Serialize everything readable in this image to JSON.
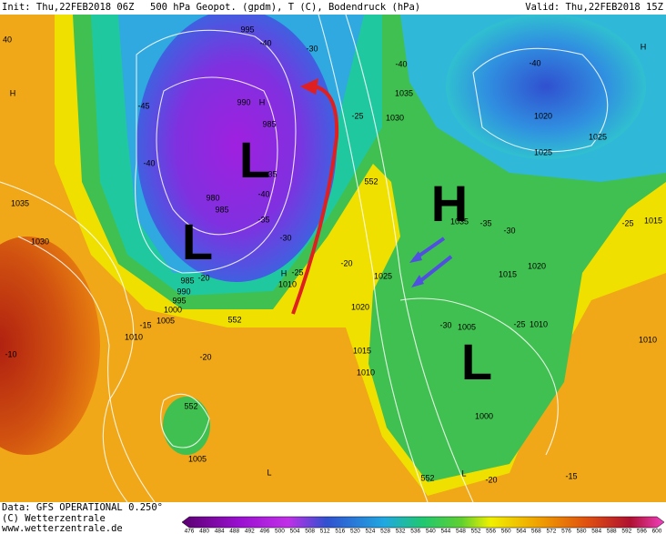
{
  "header": {
    "init": "Init: Thu,22FEB2018 06Z",
    "field": "500 hPa Geopot. (gpdm), T (C), Bodendruck (hPa)",
    "valid": "Valid: Thu,22FEB2018 15Z"
  },
  "footer": {
    "data": "Data: GFS OPERATIONAL 0.250°",
    "copyright": "(C) Wetterzentrale",
    "url": "www.wetterzentrale.de"
  },
  "colorbar": [
    "476",
    "480",
    "484",
    "488",
    "492",
    "496",
    "500",
    "504",
    "508",
    "512",
    "516",
    "520",
    "524",
    "528",
    "532",
    "536",
    "540",
    "544",
    "548",
    "552",
    "556",
    "560",
    "564",
    "568",
    "572",
    "576",
    "580",
    "584",
    "588",
    "592",
    "596",
    "600"
  ],
  "labels": [
    "995",
    "-40",
    "-30",
    "990",
    "H",
    "985",
    "L",
    "-35",
    "-40",
    "980",
    "985",
    "-35",
    "L",
    "-30",
    "H",
    "1010",
    "-25",
    "985",
    "990",
    "995",
    "1000",
    "1005",
    "552",
    "-15",
    "1010",
    "-20",
    "-20",
    "-45",
    "-40",
    "1035",
    "1030",
    "-10",
    "H",
    "40",
    "552",
    "1005",
    "L",
    "1020",
    "1015",
    "1010",
    "-20",
    "1025",
    "552",
    "-25",
    "1030",
    "1035",
    "-40",
    "H",
    "1035",
    "-35",
    "-30",
    "1015",
    "1020",
    "-30",
    "1005",
    "-25",
    "1010",
    "L",
    "1000",
    "552",
    "L",
    "-20",
    "-15",
    "-40",
    "1020",
    "1025",
    "1025",
    "H",
    "-25",
    "1015",
    "1010"
  ]
}
